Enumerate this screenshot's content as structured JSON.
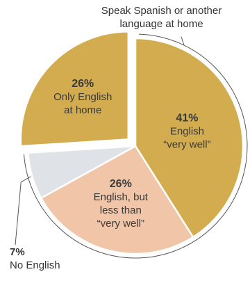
{
  "chart_data": {
    "type": "pie",
    "slices": [
      {
        "value": 41,
        "pct_label": "41%",
        "label_lines": [
          "English",
          "“very well”"
        ],
        "color": "#d2ac4f"
      },
      {
        "value": 26,
        "pct_label": "26%",
        "label_lines": [
          "English, but",
          "less than",
          "“very well”"
        ],
        "color": "#f0c5a8"
      },
      {
        "value": 7,
        "pct_label": "7%",
        "label_lines": [
          "No English"
        ],
        "color": "#dfe3e7"
      },
      {
        "value": 26,
        "pct_label": "26%",
        "label_lines": [
          "Only English",
          "at home"
        ],
        "color": "#d2ac4f"
      }
    ],
    "annotations": {
      "top": [
        "Speak Spanish or another",
        "language at home"
      ]
    }
  }
}
